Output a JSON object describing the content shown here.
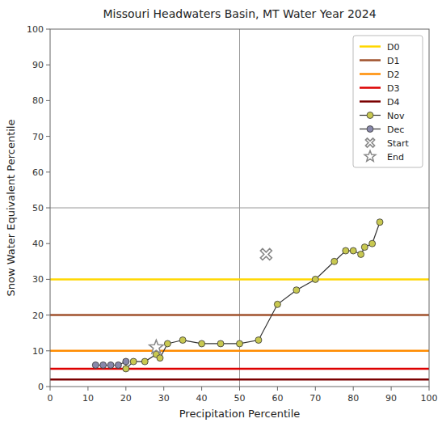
{
  "chart_data": {
    "type": "line",
    "title": "Missouri Headwaters Basin, MT Water Year 2024",
    "x_label": "Precipitation Percentile",
    "y_label": "Snow Water Equivalent Percentile",
    "xlim": [
      0,
      100
    ],
    "ylim": [
      0,
      100
    ],
    "xticks": [
      0,
      10,
      20,
      30,
      40,
      50,
      60,
      70,
      80,
      90,
      100
    ],
    "yticks": [
      0,
      10,
      20,
      30,
      40,
      50,
      60,
      70,
      80,
      90,
      100
    ],
    "grid": false,
    "legend": "upper right",
    "ref_lines": [
      {
        "axis": "x",
        "value": 50
      },
      {
        "axis": "y",
        "value": 50
      }
    ],
    "series": [
      {
        "name": "D0",
        "type": "hline",
        "color": "#FFD700",
        "values": [
          30
        ]
      },
      {
        "name": "D1",
        "type": "hline",
        "color": "#A0522D",
        "values": [
          20
        ]
      },
      {
        "name": "D2",
        "type": "hline",
        "color": "#FF8C00",
        "values": [
          10
        ]
      },
      {
        "name": "D3",
        "type": "hline",
        "color": "#DD0000",
        "values": [
          5
        ]
      },
      {
        "name": "D4",
        "type": "hline",
        "color": "#7B0000",
        "values": [
          2
        ]
      },
      {
        "name": "Nov",
        "type": "line",
        "marker": "circle",
        "color": "#C8C850",
        "x": [
          20,
          22,
          25,
          28,
          29,
          31,
          35,
          40,
          45,
          50,
          55,
          60,
          65,
          70,
          75,
          78,
          80,
          82,
          83,
          85,
          87
        ],
        "values": [
          5,
          7,
          7,
          9,
          8,
          12,
          13,
          12,
          12,
          12,
          13,
          23,
          27,
          30,
          35,
          38,
          38,
          37,
          39,
          40,
          46
        ]
      },
      {
        "name": "Dec",
        "type": "line",
        "marker": "circle",
        "color": "#8888AA",
        "x": [
          12,
          14,
          16,
          18,
          20
        ],
        "values": [
          6,
          6,
          6,
          6,
          7
        ]
      },
      {
        "name": "Start",
        "type": "scatter",
        "marker": "x",
        "x": [
          57
        ],
        "values": [
          37
        ]
      },
      {
        "name": "End",
        "type": "scatter",
        "marker": "star",
        "x": [
          28
        ],
        "values": [
          11
        ]
      }
    ]
  }
}
